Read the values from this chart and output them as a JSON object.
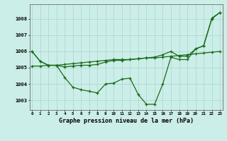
{
  "title": "Graphe pression niveau de la mer (hPa)",
  "background_color": "#cceee8",
  "grid_color": "#aad4ce",
  "line_color": "#1a6b1a",
  "ylim": [
    1002.4,
    1008.9
  ],
  "yticks": [
    1003,
    1004,
    1005,
    1006,
    1007,
    1008
  ],
  "series_smooth": [
    1005.1,
    1005.1,
    1005.15,
    1005.15,
    1005.2,
    1005.25,
    1005.3,
    1005.35,
    1005.4,
    1005.45,
    1005.5,
    1005.5,
    1005.5,
    1005.55,
    1005.6,
    1005.6,
    1005.65,
    1005.7,
    1005.75,
    1005.8,
    1005.85,
    1005.9,
    1005.95,
    1006.0
  ],
  "series_upper": [
    1006.0,
    1005.4,
    1005.15,
    1005.15,
    1005.05,
    1005.1,
    1005.15,
    1005.15,
    1005.2,
    1005.35,
    1005.45,
    1005.45,
    1005.5,
    1005.55,
    1005.6,
    1005.65,
    1005.8,
    1006.0,
    1005.7,
    1005.7,
    1006.15,
    1006.35,
    1008.05,
    1008.4
  ],
  "series_wavy": [
    1006.0,
    1005.4,
    1005.15,
    1005.15,
    1004.4,
    1003.8,
    1003.65,
    1003.55,
    1003.45,
    1004.0,
    1004.05,
    1004.3,
    1004.35,
    1003.35,
    1002.75,
    1002.75,
    1004.0,
    1005.65,
    1005.5,
    1005.5,
    1006.15,
    1006.35,
    1008.0,
    1008.4
  ],
  "x_labels": [
    "0",
    "1",
    "2",
    "3",
    "4",
    "5",
    "6",
    "7",
    "8",
    "9",
    "10",
    "11",
    "12",
    "13",
    "14",
    "15",
    "16",
    "17",
    "18",
    "19",
    "20",
    "21",
    "22",
    "23"
  ]
}
